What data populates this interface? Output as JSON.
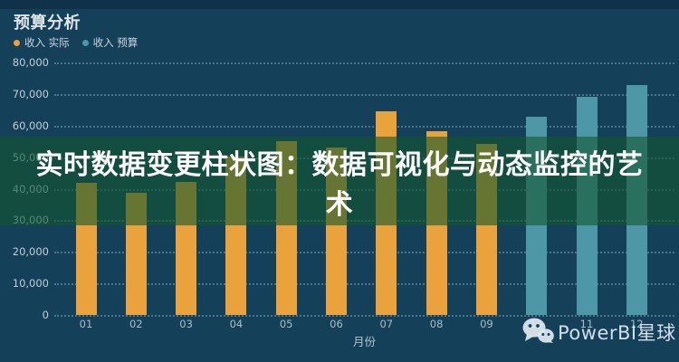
{
  "window": {
    "background": "#15405A"
  },
  "header": {
    "title": "预算分析"
  },
  "legend": {
    "items": [
      {
        "label": "收入 实际",
        "color": "#E9A23C"
      },
      {
        "label": "收入 预算",
        "color": "#4E97A9"
      }
    ]
  },
  "chart_data": {
    "type": "bar",
    "title": "预算分析",
    "xlabel": "月份",
    "ylabel": "",
    "ylim": [
      0,
      80000
    ],
    "ytick_step": 10000,
    "ytick_labels": [
      "0",
      "10,000",
      "20,000",
      "30,000",
      "40,000",
      "50,000",
      "60,000",
      "70,000",
      "80,000"
    ],
    "grid": "horizontal dotted",
    "legend_position": "top-left",
    "categories": [
      "01",
      "02",
      "03",
      "04",
      "05",
      "06",
      "07",
      "08",
      "09",
      "10",
      "11",
      "12"
    ],
    "series": [
      {
        "name": "收入 实际",
        "color": "#E9A23C",
        "values": [
          42000,
          38600,
          42200,
          50300,
          55000,
          53000,
          64600,
          58200,
          54300,
          null,
          null,
          null
        ]
      },
      {
        "name": "收入 预算",
        "color": "#4E97A9",
        "values": [
          null,
          null,
          null,
          null,
          null,
          null,
          null,
          null,
          null,
          62700,
          69200,
          72700
        ]
      }
    ]
  },
  "banner": {
    "text": "实时数据变更柱状图：数据可视化与动态监控的艺术",
    "lines": [
      "实时数据变更柱状图：数据可视化与动态监控的艺",
      "术"
    ],
    "overlay_color": "rgba(17,87,45,0.6)",
    "text_color": "#FFFFFF"
  },
  "watermark": {
    "label": "PowerBI星球",
    "icon": "wechat-icon"
  }
}
